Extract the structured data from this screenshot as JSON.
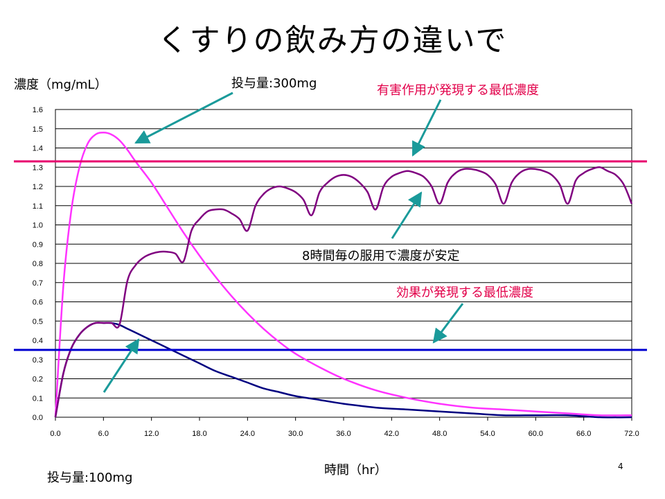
{
  "slide": {
    "title": "くすりの飲み方の違いで",
    "page_number": "4"
  },
  "annotations": {
    "dose_300": "投与量:300mg",
    "dose_100": "投与量:100mg",
    "toxic_threshold": "有害作用が発現する最低濃度",
    "effective_threshold": "効果が発現する最低濃度",
    "steady_state": "8時間毎の服用で濃度が安定"
  },
  "chart_data": {
    "type": "line",
    "title": "",
    "xlabel": "時間（hr）",
    "ylabel": "濃度（mg/mL）",
    "xlim": [
      0,
      72
    ],
    "ylim": [
      0,
      1.6
    ],
    "x_ticks": [
      "0.0",
      "6.0",
      "12.0",
      "18.0",
      "24.0",
      "30.0",
      "36.0",
      "42.0",
      "48.0",
      "54.0",
      "60.0",
      "66.0",
      "72.0"
    ],
    "y_ticks": [
      "0.0",
      "0.1",
      "0.2",
      "0.3",
      "0.4",
      "0.5",
      "0.6",
      "0.7",
      "0.8",
      "0.9",
      "1.0",
      "1.1",
      "1.2",
      "1.3",
      "1.4",
      "1.5",
      "1.6"
    ],
    "grid": "horizontal",
    "legend": "none",
    "thresholds": [
      {
        "value": 1.33,
        "color": "#e8006e"
      },
      {
        "value": 0.35,
        "color": "#0000d0"
      }
    ],
    "series": [
      {
        "color": "#ff33ff",
        "x": [
          0,
          1,
          2,
          3,
          4,
          5,
          6,
          7,
          8,
          9,
          10,
          12,
          14,
          16,
          18,
          20,
          22,
          24,
          26,
          28,
          30,
          33,
          36,
          40,
          44,
          48,
          52,
          56,
          60,
          64,
          68,
          72
        ],
        "y": [
          0,
          0.69,
          1.08,
          1.3,
          1.42,
          1.47,
          1.48,
          1.47,
          1.44,
          1.39,
          1.33,
          1.22,
          1.09,
          0.96,
          0.84,
          0.73,
          0.63,
          0.54,
          0.46,
          0.39,
          0.33,
          0.26,
          0.2,
          0.14,
          0.1,
          0.07,
          0.05,
          0.04,
          0.03,
          0.02,
          0.01,
          0.01
        ]
      },
      {
        "color": "#000080",
        "x": [
          0,
          1,
          2,
          3,
          4,
          5,
          6,
          7,
          8,
          9,
          10,
          12,
          14,
          16,
          18,
          20,
          22,
          24,
          26,
          28,
          30,
          33,
          36,
          40,
          44,
          48,
          52,
          56,
          60,
          64,
          68,
          72
        ],
        "y": [
          0,
          0.23,
          0.36,
          0.43,
          0.47,
          0.49,
          0.49,
          0.49,
          0.48,
          0.46,
          0.44,
          0.4,
          0.36,
          0.32,
          0.28,
          0.24,
          0.21,
          0.18,
          0.15,
          0.13,
          0.11,
          0.09,
          0.07,
          0.05,
          0.04,
          0.03,
          0.02,
          0.01,
          0.01,
          0.01,
          0.0,
          0.0
        ]
      },
      {
        "color": "#800080",
        "x": [
          0,
          1,
          2,
          3,
          4,
          5,
          6,
          7,
          8,
          9,
          10,
          11,
          12,
          13,
          14,
          15,
          16,
          17,
          18,
          19,
          20,
          21,
          22,
          23,
          24,
          25,
          26,
          27,
          28,
          29,
          30,
          31,
          32,
          33,
          34,
          35,
          36,
          37,
          38,
          39,
          40,
          41,
          42,
          43,
          44,
          45,
          46,
          47,
          48,
          49,
          50,
          51,
          52,
          53,
          54,
          55,
          56,
          57,
          58,
          59,
          60,
          61,
          62,
          63,
          64,
          65,
          66,
          67,
          68,
          69,
          70,
          71,
          72
        ],
        "y": [
          0,
          0.23,
          0.36,
          0.43,
          0.47,
          0.49,
          0.49,
          0.49,
          0.48,
          0.71,
          0.79,
          0.83,
          0.85,
          0.86,
          0.86,
          0.85,
          0.81,
          0.97,
          1.03,
          1.07,
          1.08,
          1.08,
          1.06,
          1.03,
          0.97,
          1.1,
          1.16,
          1.19,
          1.2,
          1.19,
          1.17,
          1.13,
          1.05,
          1.17,
          1.22,
          1.25,
          1.26,
          1.25,
          1.22,
          1.17,
          1.08,
          1.2,
          1.25,
          1.27,
          1.28,
          1.27,
          1.25,
          1.2,
          1.11,
          1.22,
          1.27,
          1.29,
          1.29,
          1.28,
          1.26,
          1.21,
          1.11,
          1.22,
          1.27,
          1.29,
          1.29,
          1.28,
          1.26,
          1.21,
          1.11,
          1.23,
          1.27,
          1.29,
          1.3,
          1.28,
          1.26,
          1.21,
          1.11
        ]
      }
    ]
  }
}
